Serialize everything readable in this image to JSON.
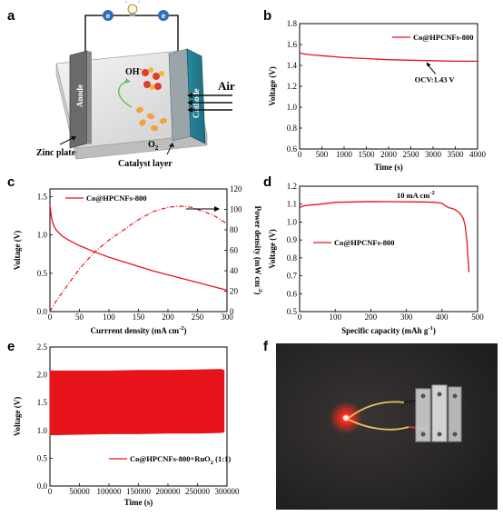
{
  "panels": {
    "a": "a",
    "b": "b",
    "c": "c",
    "d": "d",
    "e": "e",
    "f": "f"
  },
  "schematic": {
    "anode": "Anode",
    "cathode": "Cathode",
    "air": "Air",
    "oh": "OH",
    "oh_sup": "-",
    "o2": "O",
    "o2_sub": "2",
    "zinc_plate": "Zinc plate",
    "catalyst_layer": "Catalyst layer",
    "electron": "e"
  },
  "photo": {
    "description_colors": {
      "background": "#2b2b2b",
      "led": "#ff2a1a"
    }
  },
  "colors": {
    "series": "#e8141c"
  },
  "chart_data": [
    {
      "id": "b",
      "type": "line",
      "xlabel": "Time (s)",
      "ylabel": "Voltage (V)",
      "xlim": [
        0,
        4000
      ],
      "ylim": [
        0.6,
        1.8
      ],
      "xticks": [
        "0",
        "500",
        "1000",
        "1500",
        "2000",
        "2500",
        "3000",
        "3500",
        "4000"
      ],
      "yticks": [
        "0.6",
        "0.8",
        "1.0",
        "1.2",
        "1.4",
        "1.6",
        "1.8"
      ],
      "series": [
        {
          "name": "Co@HPCNFs-800",
          "x": [
            0,
            100,
            300,
            600,
            1000,
            1500,
            2000,
            2500,
            3000,
            3500,
            4000
          ],
          "y": [
            1.52,
            1.51,
            1.5,
            1.49,
            1.475,
            1.465,
            1.455,
            1.45,
            1.445,
            1.44,
            1.44
          ]
        }
      ],
      "annotation": "OCV:1.43 V",
      "annotation_x": 2850,
      "annotation_y": 1.44
    },
    {
      "id": "c",
      "type": "line",
      "xlabel": "Currrent density (mA cm",
      "xlabel_sup": "-2",
      "xlabel_end": ")",
      "ylabel": "Voltage (V)",
      "y2label": "Power density (mW cm",
      "y2label_sup": "-2",
      "y2label_end": ")",
      "xlim": [
        0,
        300
      ],
      "ylim": [
        0,
        1.6
      ],
      "y2lim": [
        0,
        120
      ],
      "xticks": [
        "0",
        "50",
        "100",
        "150",
        "200",
        "250",
        "300"
      ],
      "yticks": [
        "0.0",
        "0.5",
        "1.0",
        "1.5"
      ],
      "y2ticks": [
        "0",
        "20",
        "40",
        "60",
        "80",
        "100",
        "120"
      ],
      "series": [
        {
          "name": "Co@HPCNFs-800",
          "x": [
            0,
            2,
            5,
            10,
            20,
            30,
            50,
            75,
            100,
            125,
            150,
            175,
            200,
            225,
            250,
            275,
            300
          ],
          "y": [
            1.4,
            1.25,
            1.15,
            1.07,
            0.99,
            0.94,
            0.86,
            0.78,
            0.71,
            0.65,
            0.59,
            0.53,
            0.48,
            0.43,
            0.38,
            0.33,
            0.28
          ]
        },
        {
          "axis": "y2",
          "style": "dash-dot",
          "x": [
            0,
            10,
            25,
            50,
            75,
            100,
            125,
            150,
            175,
            200,
            215,
            225,
            240,
            250,
            275,
            300
          ],
          "y": [
            0,
            10,
            22,
            42,
            58,
            70,
            80,
            90,
            98,
            102,
            103,
            103,
            102,
            100,
            95,
            86
          ]
        }
      ]
    },
    {
      "id": "d",
      "type": "line",
      "xlabel": "Specific capacity (mAh g",
      "xlabel_sup": "-1",
      "xlabel_end": ")",
      "ylabel": "Voltage (V)",
      "xlim": [
        0,
        500
      ],
      "ylim": [
        0.5,
        1.2
      ],
      "xticks": [
        "0",
        "100",
        "200",
        "300",
        "400",
        "500"
      ],
      "yticks": [
        "0.5",
        "0.6",
        "0.7",
        "0.8",
        "0.9",
        "1.0",
        "1.1",
        "1.2"
      ],
      "annotation": "10 mA cm",
      "annotation_sup": "-2",
      "series": [
        {
          "name": "Co@HPCNFs-800",
          "x": [
            0,
            10,
            30,
            60,
            100,
            150,
            200,
            250,
            300,
            350,
            380,
            400,
            410,
            420,
            430,
            440,
            450,
            460,
            465,
            470,
            473,
            476
          ],
          "y": [
            1.08,
            1.09,
            1.095,
            1.1,
            1.11,
            1.112,
            1.115,
            1.114,
            1.113,
            1.112,
            1.11,
            1.105,
            1.09,
            1.08,
            1.075,
            1.065,
            1.05,
            1.02,
            0.98,
            0.9,
            0.8,
            0.72
          ]
        }
      ]
    },
    {
      "id": "e",
      "type": "area",
      "xlabel": "Time (s)",
      "ylabel": "Voltage (V)",
      "xlim": [
        0,
        300000
      ],
      "ylim": [
        0,
        2.5
      ],
      "xticks": [
        "0",
        "50000",
        "100000",
        "150000",
        "200000",
        "250000",
        "300000"
      ],
      "yticks": [
        "0.0",
        "0.5",
        "1.0",
        "1.5",
        "2.0",
        "2.5"
      ],
      "series": [
        {
          "name": "Co@HPCNFs-800+RuO",
          "name_sub": "2",
          "name_end": " (1:1)",
          "x": [
            0,
            1000,
            50000,
            100000,
            150000,
            200000,
            250000,
            290000,
            295000
          ],
          "upper": [
            2.05,
            2.07,
            2.07,
            2.07,
            2.08,
            2.08,
            2.09,
            2.1,
            2.08
          ],
          "lower": [
            0.9,
            0.92,
            0.93,
            0.94,
            0.94,
            0.95,
            0.95,
            0.96,
            0.97
          ]
        }
      ]
    }
  ]
}
